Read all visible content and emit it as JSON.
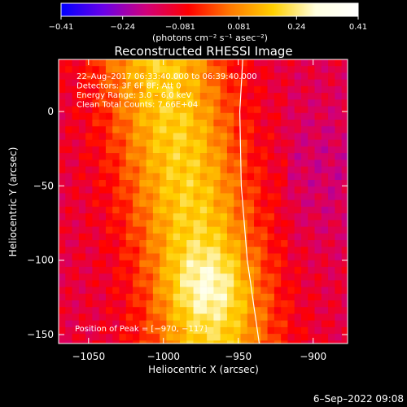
{
  "chart_data": {
    "type": "heatmap",
    "title": "Reconstructed RHESSI Image",
    "xlabel": "Heliocentric X (arcsec)",
    "ylabel": "Heliocentric Y (arcsec)",
    "xlim": [
      -1070,
      -877
    ],
    "ylim": [
      -156,
      35
    ],
    "x_ticks": [
      -1050,
      -1000,
      -950,
      -900
    ],
    "y_ticks": [
      0,
      -50,
      -100,
      -150
    ],
    "x_tick_labels": [
      "−1050",
      "−1000",
      "−950",
      "−900"
    ],
    "y_tick_labels": [
      "0",
      "−50",
      "−100",
      "−150"
    ],
    "colorbar": {
      "min": -0.41,
      "max": 0.41,
      "tick_values": [
        -0.41,
        -0.24,
        -0.081,
        0.081,
        0.24,
        0.41
      ],
      "tick_labels": [
        "−0.41",
        "−0.24",
        "−0.081",
        "0.081",
        "0.24",
        "0.41"
      ],
      "unit_label": "(photons cm⁻² s⁻¹ asec⁻²)",
      "colors": [
        "#0000ff",
        "#6a00e8",
        "#d0007a",
        "#ff0000",
        "#ff7a00",
        "#ffd000",
        "#ffffe0",
        "#ffffff"
      ]
    },
    "annotations": [
      "22–Aug–2017 06:33:40.000 to 06:39:40.000",
      "Detectors: 3F 6F 8F; Att 0",
      "Energy Range: 3.0 – 6.0 keV",
      "Clean    Total Counts: 7.66E+04"
    ],
    "peak_label": "Position of Peak = [−970, −117]",
    "peak_position": [
      -970,
      -117
    ],
    "limb": [
      [
        -947,
        35
      ],
      [
        -949,
        0
      ],
      [
        -948,
        -50
      ],
      [
        -944,
        -100
      ],
      [
        -936,
        -156
      ]
    ],
    "grid": false,
    "intensity_field": {
      "description": "emission band running from upper-left to lower-centre, peaking near the labelled peak position",
      "ridge": [
        [
          -1002,
          35
        ],
        [
          -995,
          0
        ],
        [
          -985,
          -50
        ],
        [
          -975,
          -100
        ],
        [
          -970,
          -130
        ],
        [
          -968,
          -156
        ]
      ]
    }
  },
  "footer": {
    "date_stamp": "6–Sep–2022 09:08"
  }
}
